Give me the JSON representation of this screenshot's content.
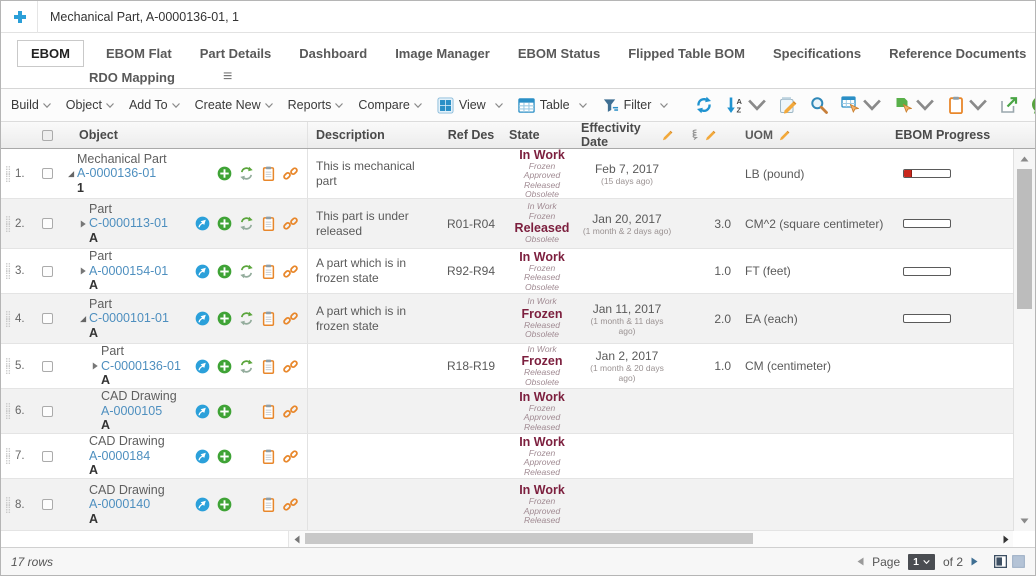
{
  "window": {
    "title": "Mechanical Part, A-0000136-01, 1"
  },
  "tabs": {
    "active": "EBOM",
    "items_row1": [
      "EBOM",
      "EBOM Flat",
      "Part Details",
      "Dashboard",
      "Image Manager",
      "EBOM Status",
      "Flipped Table BOM",
      "Specifications",
      "Reference Documents"
    ],
    "items_row2": [
      "RDO Mapping"
    ]
  },
  "toolbar": {
    "menus": [
      "Build",
      "Object",
      "Add To",
      "Create New",
      "Reports",
      "Compare"
    ],
    "icon_menus": [
      {
        "label": "View",
        "icon": "view-grid-icon"
      },
      {
        "label": "Table",
        "icon": "table-icon"
      },
      {
        "label": "Filter",
        "icon": "filter-icon"
      }
    ],
    "tools": [
      {
        "name": "refresh-icon",
        "caret": false
      },
      {
        "name": "sort-icon",
        "caret": true
      },
      {
        "name": "mass-edit-icon",
        "caret": false
      },
      {
        "name": "search-icon",
        "caret": false
      },
      {
        "name": "table-action-icon",
        "caret": true
      },
      {
        "name": "lifecycle-action-icon",
        "caret": true
      },
      {
        "name": "clipboard-tool-icon",
        "caret": true
      },
      {
        "name": "export-icon",
        "caret": false
      },
      {
        "name": "help-icon",
        "caret": false
      }
    ]
  },
  "table": {
    "headers": {
      "object": "Object",
      "description": "Description",
      "ref_des": "Ref Des",
      "state": "State",
      "effectivity_date": "Effectivity Date",
      "uom": "UOM",
      "ebom_progress": "EBOM Progress"
    },
    "rows": [
      {
        "num": "1.",
        "expand": "expanded",
        "type": "Mechanical Part",
        "name": "A-0000136-01",
        "revision": "1",
        "actions": [
          "add-icon",
          "replace-icon",
          "clipboard-icon",
          "link-icon"
        ],
        "description": "This is mechanical part",
        "ref_des": "",
        "lifecycle": {
          "above": [],
          "current": "In Work",
          "below": [
            "Frozen",
            "Approved",
            "Released",
            "Obsolete"
          ]
        },
        "effectivity_date": "Feb 7, 2017",
        "effectivity_ago": "(15 days ago)",
        "quantity": "",
        "uom": "LB (pound)",
        "progress": {
          "bar": true,
          "percent": 18
        }
      },
      {
        "num": "2.",
        "expand": "collapsed",
        "type": "Part",
        "name": "C-0000113-01",
        "revision": "A",
        "actions": [
          "navigate-icon",
          "add-icon",
          "replace-icon",
          "clipboard-icon",
          "link-icon"
        ],
        "description": "This part is under released",
        "ref_des": "R01-R04",
        "lifecycle": {
          "above": [
            "In Work",
            "Frozen"
          ],
          "current": "Released",
          "below": [
            "Obsolete"
          ]
        },
        "effectivity_date": "Jan 20, 2017",
        "effectivity_ago": "(1 month & 2 days ago)",
        "quantity": "3.0",
        "uom": "CM^2 (square centimeter)",
        "progress": {
          "bar": true,
          "percent": 0
        }
      },
      {
        "num": "3.",
        "expand": "collapsed",
        "type": "Part",
        "name": "A-0000154-01",
        "revision": "A",
        "actions": [
          "navigate-icon",
          "add-icon",
          "replace-icon",
          "clipboard-icon",
          "link-icon"
        ],
        "description": "A part which is in frozen state",
        "ref_des": "R92-R94",
        "lifecycle": {
          "above": [],
          "current": "In Work",
          "below": [
            "Frozen",
            "Released",
            "Obsolete"
          ]
        },
        "effectivity_date": "",
        "effectivity_ago": "",
        "quantity": "1.0",
        "uom": "FT (feet)",
        "progress": {
          "bar": true,
          "percent": 0
        }
      },
      {
        "num": "4.",
        "expand": "expanded",
        "type": "Part",
        "name": "C-0000101-01",
        "revision": "A",
        "actions": [
          "navigate-icon",
          "add-icon",
          "replace-icon",
          "clipboard-icon",
          "link-icon"
        ],
        "description": "A part which is in frozen state",
        "ref_des": "",
        "lifecycle": {
          "above": [
            "In Work"
          ],
          "current": "Frozen",
          "below": [
            "Released",
            "Obsolete"
          ]
        },
        "effectivity_date": "Jan 11, 2017",
        "effectivity_ago": "(1 month & 11 days ago)",
        "quantity": "2.0",
        "uom": "EA (each)",
        "progress": {
          "bar": true,
          "percent": 0
        }
      },
      {
        "num": "5.",
        "expand": "collapsed",
        "type": "Part",
        "name": "C-0000136-01",
        "revision": "A",
        "actions": [
          "navigate-icon",
          "add-icon",
          "replace-icon",
          "clipboard-icon",
          "link-icon"
        ],
        "description": "",
        "ref_des": "R18-R19",
        "lifecycle": {
          "above": [
            "In Work"
          ],
          "current": "Frozen",
          "below": [
            "Released",
            "Obsolete"
          ]
        },
        "effectivity_date": "Jan 2, 2017",
        "effectivity_ago": "(1 month & 20 days ago)",
        "quantity": "1.0",
        "uom": "CM (centimeter)",
        "progress": {
          "bar": false,
          "percent": 0
        }
      },
      {
        "num": "6.",
        "expand": "none",
        "type": "CAD Drawing",
        "name": "A-0000105",
        "revision": "A",
        "actions": [
          "navigate-icon",
          "add-icon",
          "clipboard-icon",
          "link-icon"
        ],
        "description": "",
        "ref_des": "",
        "lifecycle": {
          "above": [],
          "current": "In Work",
          "below": [
            "Frozen",
            "Approved",
            "Released"
          ]
        },
        "effectivity_date": "",
        "effectivity_ago": "",
        "quantity": "",
        "uom": "",
        "progress": {
          "bar": false,
          "percent": 0
        }
      },
      {
        "num": "7.",
        "expand": "none",
        "type": "CAD Drawing",
        "name": "A-0000184",
        "revision": "A",
        "actions": [
          "navigate-icon",
          "add-icon",
          "clipboard-icon",
          "link-icon"
        ],
        "description": "",
        "ref_des": "",
        "lifecycle": {
          "above": [],
          "current": "In Work",
          "below": [
            "Frozen",
            "Approved",
            "Released"
          ]
        },
        "effectivity_date": "",
        "effectivity_ago": "",
        "quantity": "",
        "uom": "",
        "progress": {
          "bar": false,
          "percent": 0
        }
      },
      {
        "num": "8.",
        "expand": "none",
        "type": "CAD Drawing",
        "name": "A-0000140",
        "revision": "A",
        "actions": [
          "navigate-icon",
          "add-icon",
          "clipboard-icon",
          "link-icon"
        ],
        "description": "",
        "ref_des": "",
        "lifecycle": {
          "above": [],
          "current": "In Work",
          "below": [
            "Frozen",
            "Approved",
            "Released"
          ]
        },
        "effectivity_date": "",
        "effectivity_ago": "",
        "quantity": "",
        "uom": "",
        "progress": {
          "bar": false,
          "percent": 0
        }
      }
    ]
  },
  "footer": {
    "row_count": "17 rows",
    "page_label": "Page",
    "page_value": "1",
    "page_total": "of 2"
  },
  "colors": {
    "link_blue": "#4e8fbf",
    "state_current": "#7c1f3e",
    "state_faded": "#a08a92",
    "progress_red": "#c9271c",
    "icon_green": "#3fa336",
    "icon_orange": "#e8872b",
    "icon_blue": "#2b8fc6"
  }
}
